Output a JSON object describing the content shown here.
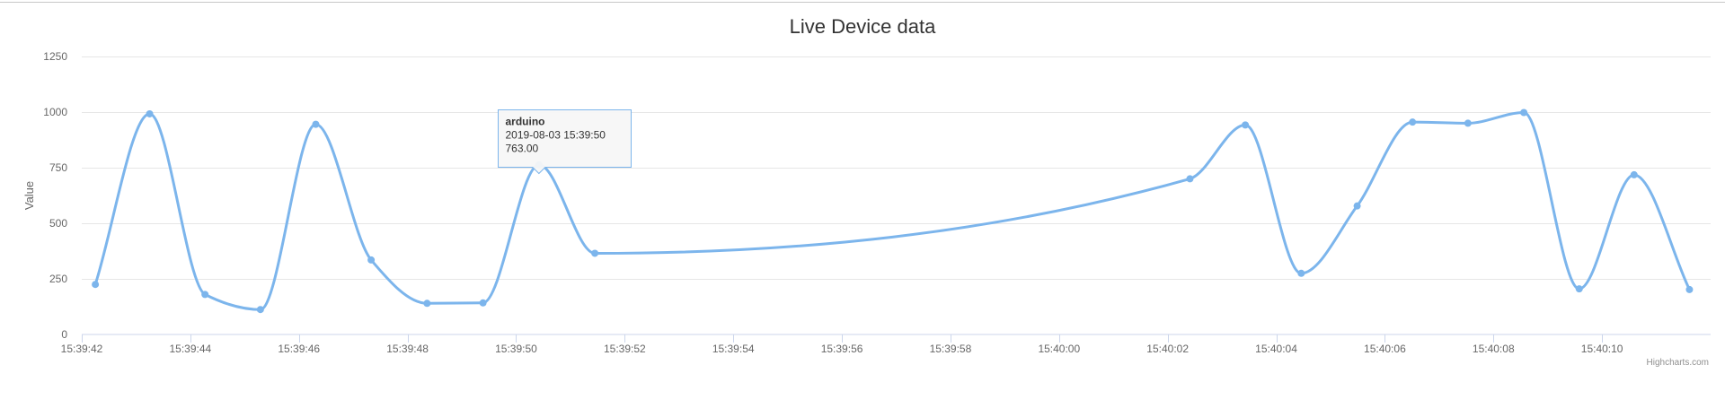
{
  "chart_data": {
    "type": "line",
    "title": "Live Device data",
    "ylabel": "Value",
    "ylim": [
      0,
      1250
    ],
    "y_ticks": [
      0,
      250,
      500,
      750,
      1000,
      1250
    ],
    "x_range": [
      "15:39:42",
      "15:40:12"
    ],
    "x_ticks": [
      "15:39:42",
      "15:39:44",
      "15:39:46",
      "15:39:48",
      "15:39:50",
      "15:39:52",
      "15:39:54",
      "15:39:56",
      "15:39:58",
      "15:40:00",
      "15:40:02",
      "15:40:04",
      "15:40:06",
      "15:40:08",
      "15:40:10"
    ],
    "smooth": true,
    "grid": true,
    "legend": "none",
    "series": [
      {
        "color": "#7cb5ec",
        "points": [
          {
            "x": "15:39:42.25",
            "y": 225
          },
          {
            "x": "15:39:43.25",
            "y": 992
          },
          {
            "x": "15:39:44.27",
            "y": 180
          },
          {
            "x": "15:39:45.29",
            "y": 112
          },
          {
            "x": "15:39:46.31",
            "y": 945
          },
          {
            "x": "15:39:47.33",
            "y": 335
          },
          {
            "x": "15:39:48.36",
            "y": 140
          },
          {
            "x": "15:39:49.39",
            "y": 142
          },
          {
            "x": "15:39:50.42",
            "y": 763
          },
          {
            "x": "15:39:51.45",
            "y": 365
          },
          {
            "x": "15:40:02.41",
            "y": 700
          },
          {
            "x": "15:40:03.43",
            "y": 942
          },
          {
            "x": "15:40:04.46",
            "y": 275
          },
          {
            "x": "15:40:05.49",
            "y": 578
          },
          {
            "x": "15:40:06.51",
            "y": 955
          },
          {
            "x": "15:40:07.53",
            "y": 950
          },
          {
            "x": "15:40:08.56",
            "y": 998
          },
          {
            "x": "15:40:09.58",
            "y": 205
          },
          {
            "x": "15:40:10.59",
            "y": 718
          },
          {
            "x": "15:40:11.61",
            "y": 202
          }
        ]
      }
    ],
    "tooltip": {
      "series": "arduino",
      "date": "2019-08-03 15:39:50",
      "value": "763.00",
      "point_index": 8
    },
    "credits": "Highcharts.com"
  }
}
